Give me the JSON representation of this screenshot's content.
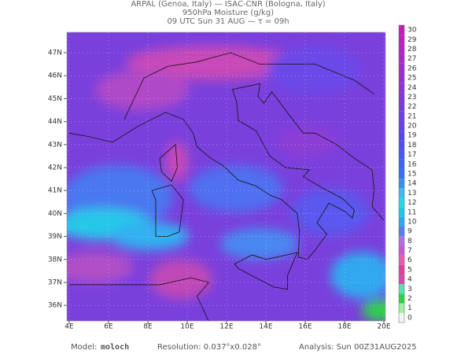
{
  "header": {
    "lines": [
      "ARPAL (Genoa, Italy)  —  ISAC-CNR (Bologna, Italy)",
      "950hPa Moisture (g/kg)",
      "09 UTC Sun 31 AUG  —  τ = 09h"
    ]
  },
  "map": {
    "lon_labels": [
      "4E",
      "6E",
      "8E",
      "10E",
      "12E",
      "14E",
      "16E",
      "18E",
      "20E"
    ],
    "lat_labels": [
      "36N",
      "37N",
      "38N",
      "39N",
      "40N",
      "41N",
      "42N",
      "43N",
      "44N",
      "45N",
      "46N",
      "47N"
    ]
  },
  "colorbar": {
    "levels": [
      0,
      1,
      2,
      3,
      4,
      5,
      6,
      7,
      8,
      9,
      10,
      11,
      12,
      13,
      14,
      15,
      16,
      17,
      18,
      19,
      20,
      21,
      22,
      23,
      24,
      25,
      26,
      27,
      28,
      29,
      30
    ],
    "colors": [
      "#f4f4f4",
      "#9ff09f",
      "#2fd24a",
      "#58e0b0",
      "#d84aa8",
      "#e0409a",
      "#e85ab0",
      "#c85ad0",
      "#b070e0",
      "#5080f0",
      "#30a8f0",
      "#20c8e8",
      "#28d8e0",
      "#40b8f0",
      "#3a90f0",
      "#3870f0",
      "#4060f0",
      "#4858f0",
      "#5050ee",
      "#5a48ea",
      "#6444e6",
      "#6e40e2",
      "#783cde",
      "#8238da",
      "#8c34d6",
      "#9630d2",
      "#a02cce",
      "#aa28c8",
      "#b424c2",
      "#be20bc",
      "#c81cb6"
    ]
  },
  "footer": {
    "model_label": "Model:",
    "model": "moloch",
    "resolution": "Resolution: 0.037°x0.028°",
    "analysis": "Analysis: Sun 00Z31AUG2025"
  }
}
